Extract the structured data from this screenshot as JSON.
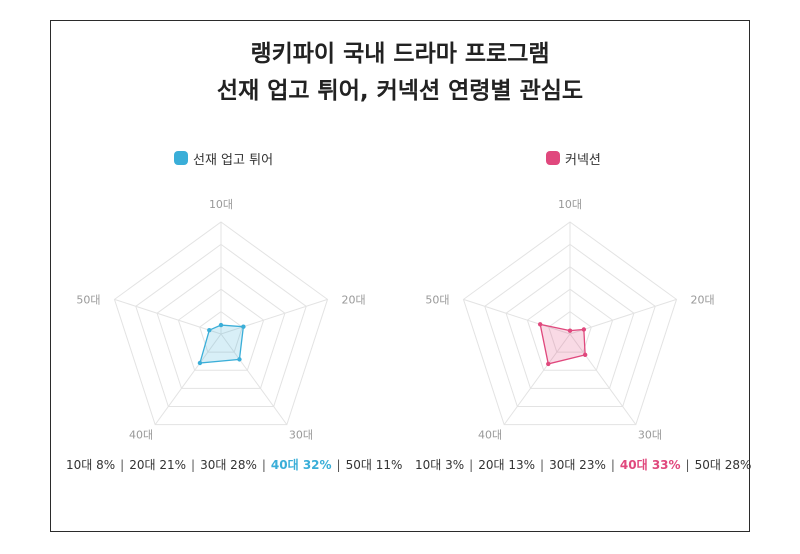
{
  "title": {
    "line1": "랭키파이 국내 드라마 프로그램",
    "line2": "선재 업고 튀어, 커넥션 연령별 관심도"
  },
  "colors": {
    "chart1": "#3aaed8",
    "chart2": "#e0487d",
    "grid": "#e3e3e3",
    "axis_label": "#999999"
  },
  "chart_data": [
    {
      "type": "radar",
      "legend": "선재 업고 튀어",
      "categories": [
        "10대",
        "20대",
        "30대",
        "40대",
        "50대"
      ],
      "values": [
        8,
        21,
        28,
        32,
        11
      ],
      "rmax": 100,
      "rings": 5,
      "highlight_index": 3,
      "stats": [
        {
          "label": "10대 8%"
        },
        {
          "label": "20대 21%"
        },
        {
          "label": "30대 28%"
        },
        {
          "label": "40대 32%"
        },
        {
          "label": "50대 11%"
        }
      ]
    },
    {
      "type": "radar",
      "legend": "커넥션",
      "categories": [
        "10대",
        "20대",
        "30대",
        "40대",
        "50대"
      ],
      "values": [
        3,
        13,
        23,
        33,
        28
      ],
      "rmax": 100,
      "rings": 5,
      "highlight_index": 3,
      "stats": [
        {
          "label": "10대 3%"
        },
        {
          "label": "20대 13%"
        },
        {
          "label": "30대 23%"
        },
        {
          "label": "40대 33%"
        },
        {
          "label": "50대 28%"
        }
      ]
    }
  ]
}
